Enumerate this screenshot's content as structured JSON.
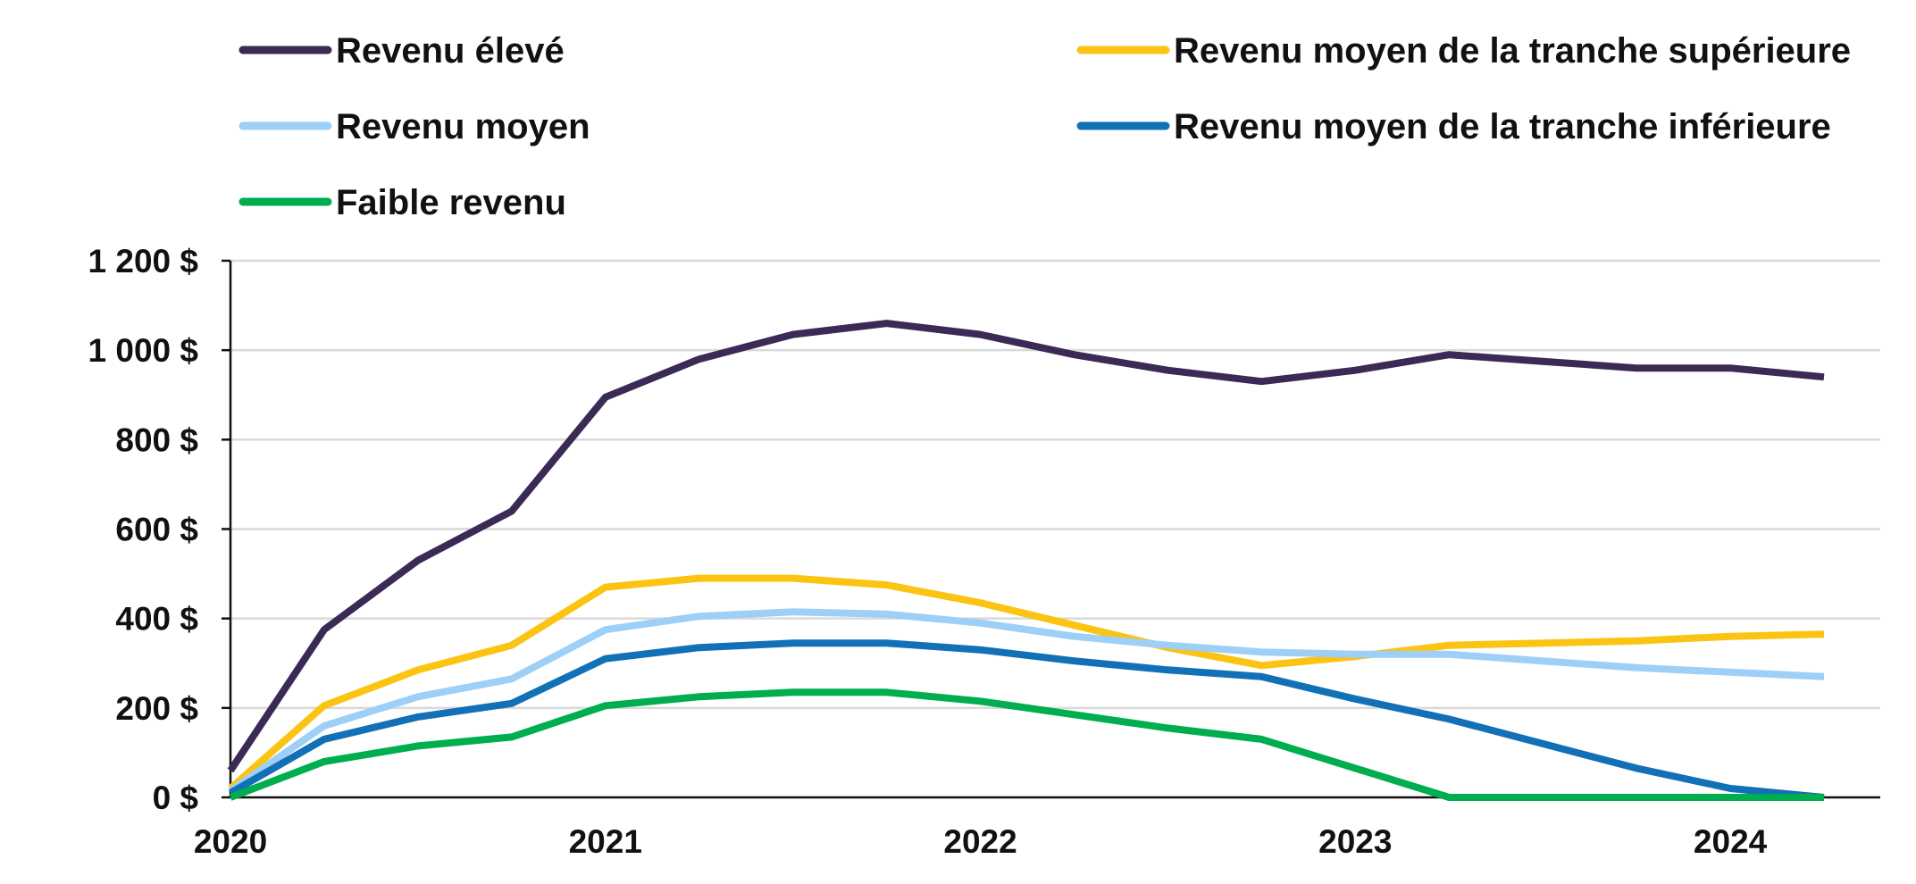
{
  "chart_data": {
    "type": "line",
    "title": "",
    "xlabel": "",
    "ylabel": "",
    "ylim": [
      0,
      1200
    ],
    "xlim": [
      2020.0,
      2024.4
    ],
    "grid": true,
    "legend_placement": "top",
    "y_ticks": [
      0,
      200,
      400,
      600,
      800,
      1000,
      1200
    ],
    "y_tick_labels": [
      "0 $",
      "200 $",
      "400 $",
      "600 $",
      "800 $",
      "1 000 $",
      "1 200 $"
    ],
    "x_ticks": [
      2020,
      2021,
      2022,
      2023,
      2024
    ],
    "x_tick_labels": [
      "2020",
      "2021",
      "2022",
      "2023",
      "2024"
    ],
    "x": [
      2020.0,
      2020.25,
      2020.5,
      2020.75,
      2021.0,
      2021.25,
      2021.5,
      2021.75,
      2022.0,
      2022.25,
      2022.5,
      2022.75,
      2023.0,
      2023.25,
      2023.5,
      2023.75,
      2024.0,
      2024.25
    ],
    "series": [
      {
        "name": "Revenu élevé",
        "color": "#3b2a55",
        "values": [
          60,
          375,
          530,
          640,
          895,
          980,
          1035,
          1060,
          1035,
          990,
          955,
          930,
          955,
          990,
          975,
          960,
          960,
          940
        ]
      },
      {
        "name": "Revenu moyen de la tranche supérieure",
        "color": "#fbc312",
        "values": [
          20,
          205,
          285,
          340,
          470,
          490,
          490,
          475,
          435,
          385,
          335,
          295,
          315,
          340,
          345,
          350,
          360,
          365
        ]
      },
      {
        "name": "Revenu moyen",
        "color": "#9dcff7",
        "values": [
          15,
          160,
          225,
          265,
          375,
          405,
          415,
          410,
          390,
          360,
          340,
          325,
          320,
          320,
          305,
          290,
          280,
          270
        ]
      },
      {
        "name": "Revenu moyen de la tranche inférieure",
        "color": "#1170b6",
        "values": [
          10,
          130,
          180,
          210,
          310,
          335,
          345,
          345,
          330,
          305,
          285,
          270,
          220,
          175,
          120,
          65,
          20,
          0
        ]
      },
      {
        "name": "Faible revenu",
        "color": "#00ad4f",
        "values": [
          0,
          80,
          115,
          135,
          205,
          225,
          235,
          235,
          215,
          185,
          155,
          130,
          65,
          0,
          0,
          0,
          0,
          0
        ]
      }
    ]
  }
}
